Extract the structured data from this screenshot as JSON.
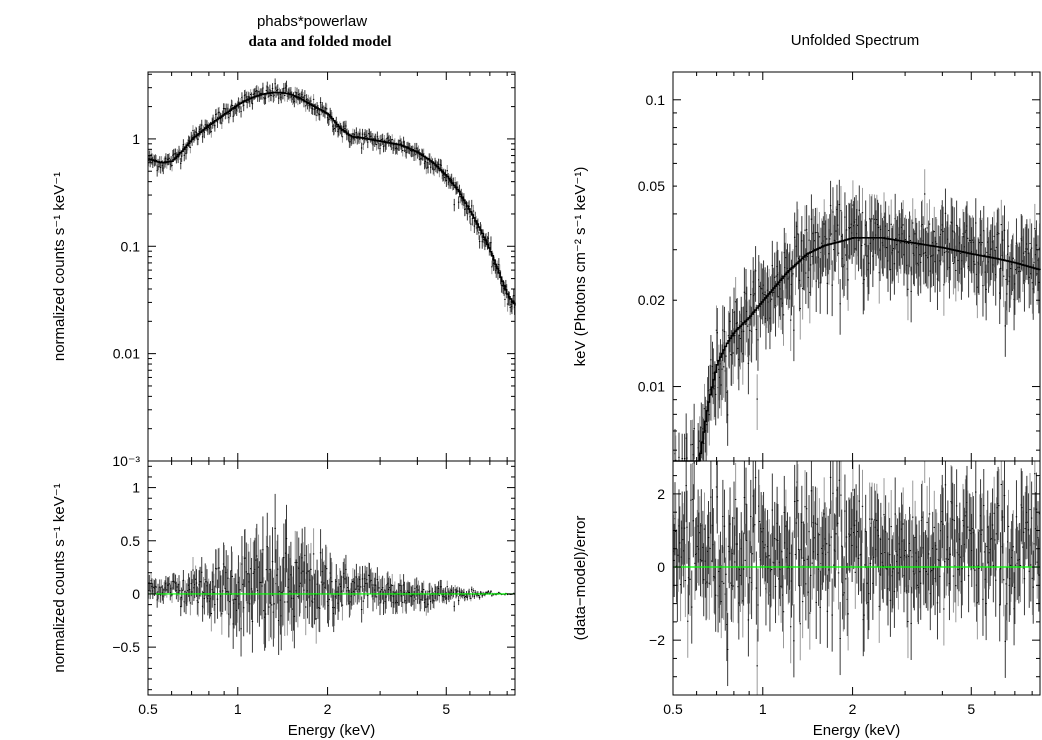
{
  "chart_data": [
    {
      "type": "scatter",
      "title": "phabs*powerlaw",
      "subtitle": "data and folded model",
      "xlabel": "Energy (keV)",
      "xscale": "log",
      "xlim": [
        0.5,
        8.5
      ],
      "xticks": [
        "0.5",
        "1",
        "2",
        "5"
      ],
      "upper": {
        "ylabel": "normalized counts s⁻¹ keV⁻¹",
        "yscale": "log",
        "ylim": [
          0.001,
          4.2
        ],
        "yticks": [
          "10⁻³",
          "0.01",
          "0.1",
          "1"
        ],
        "model_curve": {
          "x": [
            0.5,
            0.55,
            0.6,
            0.65,
            0.7,
            0.8,
            0.9,
            1.0,
            1.1,
            1.2,
            1.3,
            1.4,
            1.5,
            1.6,
            1.8,
            2.0,
            2.2,
            2.4,
            2.6,
            3.0,
            3.5,
            4.0,
            4.5,
            5.0,
            5.5,
            6.0,
            6.5,
            7.0,
            7.5,
            8.0,
            8.5
          ],
          "y": [
            0.65,
            0.6,
            0.62,
            0.78,
            1.0,
            1.35,
            1.7,
            2.1,
            2.4,
            2.6,
            2.7,
            2.7,
            2.6,
            2.4,
            2.0,
            1.7,
            1.25,
            1.05,
            1.02,
            0.95,
            0.88,
            0.75,
            0.6,
            0.45,
            0.32,
            0.21,
            0.14,
            0.09,
            0.055,
            0.035,
            0.028
          ]
        }
      },
      "lower": {
        "ylabel": "normalized counts s⁻¹ keV⁻¹",
        "yscale": "linear",
        "ylim": [
          -0.95,
          1.25
        ],
        "yticks": [
          "−0.5",
          "0",
          "0.5",
          "1"
        ],
        "zero_line_color": "#00ff00"
      }
    },
    {
      "type": "scatter",
      "title": "Unfolded Spectrum",
      "xlabel": "Energy (keV)",
      "xscale": "log",
      "xlim": [
        0.5,
        8.5
      ],
      "xticks": [
        "0.5",
        "1",
        "2",
        "5"
      ],
      "upper": {
        "ylabel": "keV (Photons cm⁻² s⁻¹ keV⁻¹)",
        "yscale": "log",
        "ylim": [
          0.0055,
          0.125
        ],
        "yticks": [
          "0.01",
          "0.02",
          "0.05",
          "0.1"
        ],
        "model_curve": {
          "x": [
            0.6,
            0.65,
            0.7,
            0.75,
            0.8,
            0.9,
            1.0,
            1.2,
            1.4,
            1.6,
            1.8,
            2.0,
            2.5,
            3.0,
            4.0,
            5.0,
            6.0,
            7.0,
            8.5
          ],
          "y": [
            0.005,
            0.0085,
            0.012,
            0.014,
            0.0155,
            0.0175,
            0.02,
            0.025,
            0.029,
            0.031,
            0.032,
            0.033,
            0.033,
            0.032,
            0.0305,
            0.029,
            0.028,
            0.027,
            0.0255
          ]
        }
      },
      "lower": {
        "ylabel": "(data−model)/error",
        "yscale": "linear",
        "ylim": [
          -3.5,
          2.9
        ],
        "yticks": [
          "−2",
          "0",
          "2"
        ],
        "zero_line_color": "#00ff00"
      }
    }
  ],
  "colors": {
    "data_points": "#3a3a3a",
    "model": "#000000",
    "zero_line": "#00ff00"
  }
}
